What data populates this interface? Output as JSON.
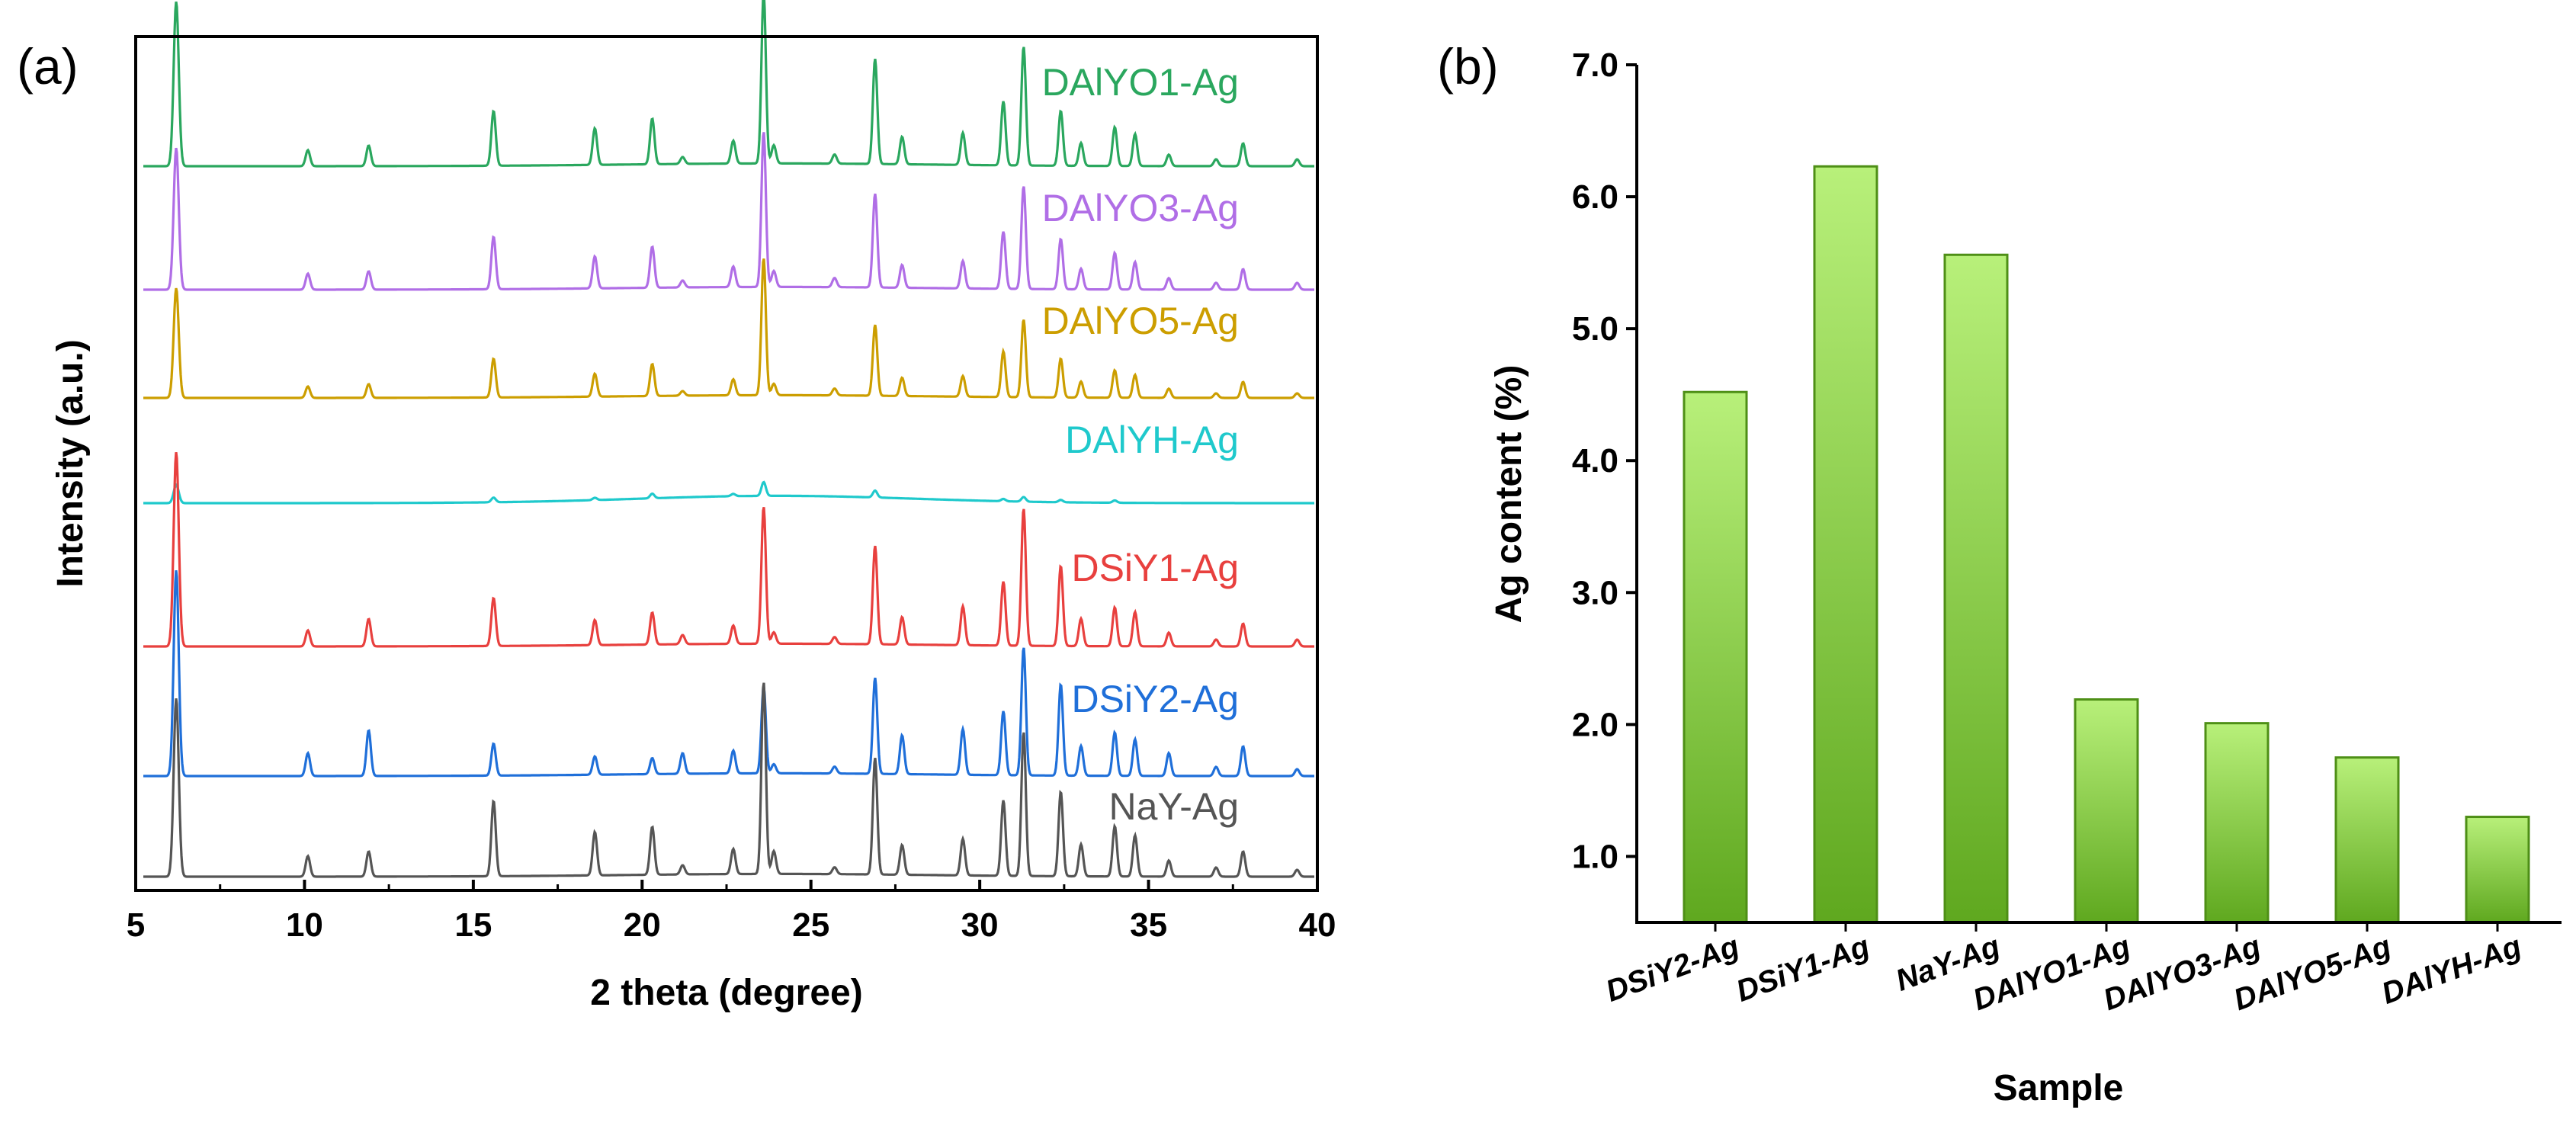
{
  "chart_data": [
    {
      "panel": "(a)",
      "type": "line",
      "title": "",
      "xlabel": "2 theta (degree)",
      "ylabel": "Intensity (a.u.)",
      "xlim": [
        5,
        40
      ],
      "xticks": [
        5,
        10,
        15,
        20,
        25,
        30,
        35,
        40
      ],
      "grid": false,
      "peak_positions": [
        6.2,
        10.1,
        11.9,
        15.6,
        18.6,
        20.3,
        21.2,
        22.7,
        23.6,
        23.9,
        25.7,
        26.9,
        27.7,
        29.5,
        30.7,
        31.3,
        32.4,
        33.0,
        34.0,
        34.6,
        35.6,
        37.0,
        37.8,
        39.4
      ],
      "series": [
        {
          "name": "DAlYO1-Ag",
          "color": "#2aa75e",
          "intensities": [
            0.72,
            0.07,
            0.09,
            0.24,
            0.16,
            0.2,
            0.03,
            0.1,
            0.75,
            0.08,
            0.04,
            0.46,
            0.12,
            0.14,
            0.28,
            0.52,
            0.24,
            0.1,
            0.17,
            0.14,
            0.05,
            0.03,
            0.1,
            0.03
          ]
        },
        {
          "name": "DAlYO3-Ag",
          "color": "#b06ee6",
          "intensities": [
            0.62,
            0.07,
            0.08,
            0.23,
            0.14,
            0.18,
            0.03,
            0.09,
            0.68,
            0.07,
            0.04,
            0.41,
            0.1,
            0.12,
            0.25,
            0.45,
            0.22,
            0.09,
            0.16,
            0.12,
            0.05,
            0.03,
            0.09,
            0.03
          ]
        },
        {
          "name": "DAlYO5-Ag",
          "color": "#cc9e00",
          "intensities": [
            0.48,
            0.05,
            0.06,
            0.17,
            0.1,
            0.14,
            0.02,
            0.07,
            0.6,
            0.05,
            0.03,
            0.31,
            0.08,
            0.09,
            0.2,
            0.34,
            0.17,
            0.07,
            0.12,
            0.1,
            0.04,
            0.02,
            0.07,
            0.02
          ]
        },
        {
          "name": "DAlYH-Ag",
          "color": "#1fc9cc",
          "intensities": [
            0.08,
            0.0,
            0.0,
            0.02,
            0.01,
            0.02,
            0.0,
            0.01,
            0.06,
            0.0,
            0.0,
            0.03,
            0.0,
            0.0,
            0.01,
            0.02,
            0.01,
            0.0,
            0.01,
            0.0,
            0.0,
            0.0,
            0.0,
            0.0
          ]
        },
        {
          "name": "DSiY1-Ag",
          "color": "#e8403e",
          "intensities": [
            0.85,
            0.07,
            0.12,
            0.21,
            0.11,
            0.14,
            0.04,
            0.08,
            0.6,
            0.05,
            0.03,
            0.43,
            0.12,
            0.17,
            0.28,
            0.6,
            0.35,
            0.12,
            0.17,
            0.15,
            0.06,
            0.03,
            0.1,
            0.03
          ]
        },
        {
          "name": "DSiY2-Ag",
          "color": "#1f6fd9",
          "intensities": [
            0.9,
            0.1,
            0.2,
            0.14,
            0.08,
            0.07,
            0.09,
            0.1,
            0.38,
            0.04,
            0.03,
            0.42,
            0.17,
            0.2,
            0.28,
            0.56,
            0.4,
            0.13,
            0.19,
            0.16,
            0.1,
            0.04,
            0.13,
            0.03
          ]
        },
        {
          "name": "NaY-Ag",
          "color": "#555555",
          "intensities": [
            0.78,
            0.09,
            0.11,
            0.33,
            0.19,
            0.21,
            0.04,
            0.11,
            0.84,
            0.1,
            0.03,
            0.51,
            0.13,
            0.16,
            0.33,
            0.63,
            0.37,
            0.14,
            0.22,
            0.18,
            0.07,
            0.04,
            0.11,
            0.03
          ]
        }
      ]
    },
    {
      "panel": "(b)",
      "type": "bar",
      "title": "",
      "xlabel": "Sample",
      "ylabel": "Ag content (%)",
      "ylim": [
        0.5,
        7.0
      ],
      "yticks": [
        1.0,
        2.0,
        3.0,
        4.0,
        5.0,
        6.0,
        7.0
      ],
      "grid": false,
      "categories": [
        "DSiY2-Ag",
        "DSiY1-Ag",
        "NaY-Ag",
        "DAlYO1-Ag",
        "DAlYO3-Ag",
        "DAlYO5-Ag",
        "DAlYH-Ag"
      ],
      "values": [
        4.52,
        6.23,
        5.56,
        2.19,
        2.01,
        1.75,
        1.3
      ],
      "bar_colors": {
        "top": "#b8f07a",
        "bottom": "#5fa81f",
        "edge": "#4e8f16"
      }
    }
  ]
}
